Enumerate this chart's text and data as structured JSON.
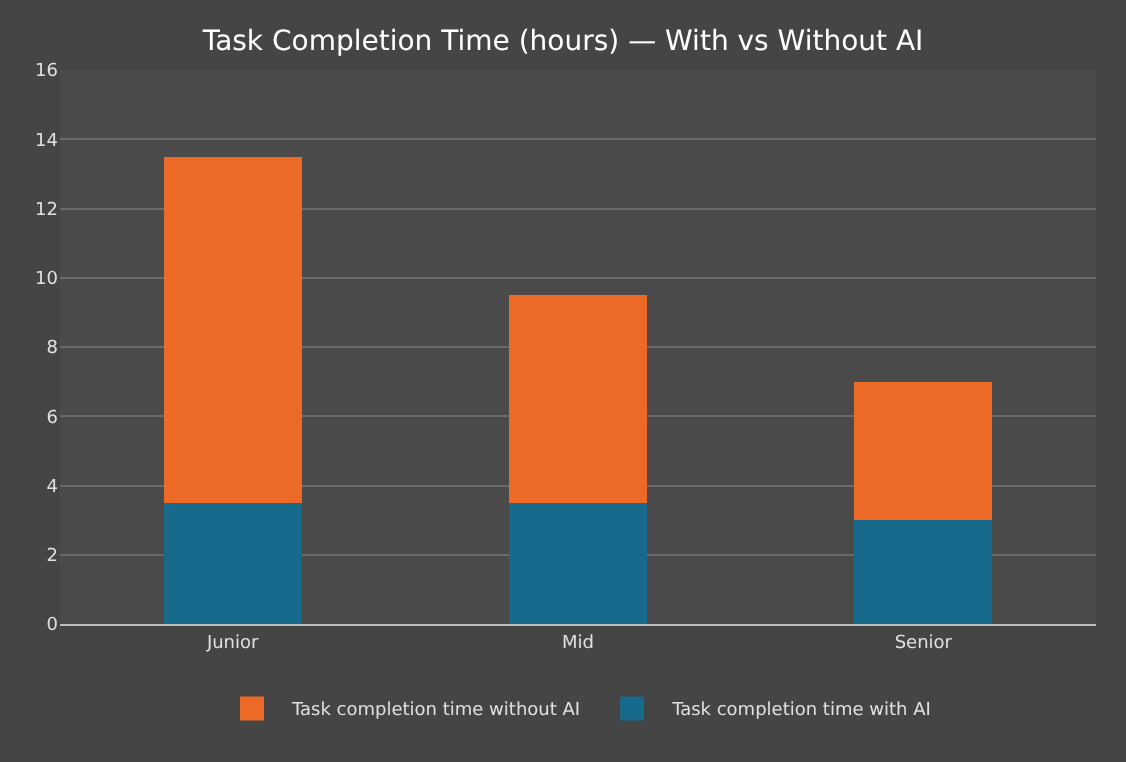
{
  "chart_data": {
    "type": "bar",
    "title": "Task Completion Time (hours) — With vs Without AI",
    "categories": [
      "Junior",
      "Mid",
      "Senior"
    ],
    "stacked": true,
    "series": [
      {
        "name": "Task completion time with AI",
        "color": "#186a8c",
        "values": [
          3.5,
          3.5,
          3
        ]
      },
      {
        "name": "Task completion time without AI",
        "color": "#ec6a26",
        "values": [
          10,
          6,
          4
        ]
      }
    ],
    "ylim": [
      0,
      16
    ],
    "yticks": [
      0,
      2,
      4,
      6,
      8,
      10,
      12,
      14,
      16
    ],
    "grid": "y",
    "legend": "bottom"
  }
}
